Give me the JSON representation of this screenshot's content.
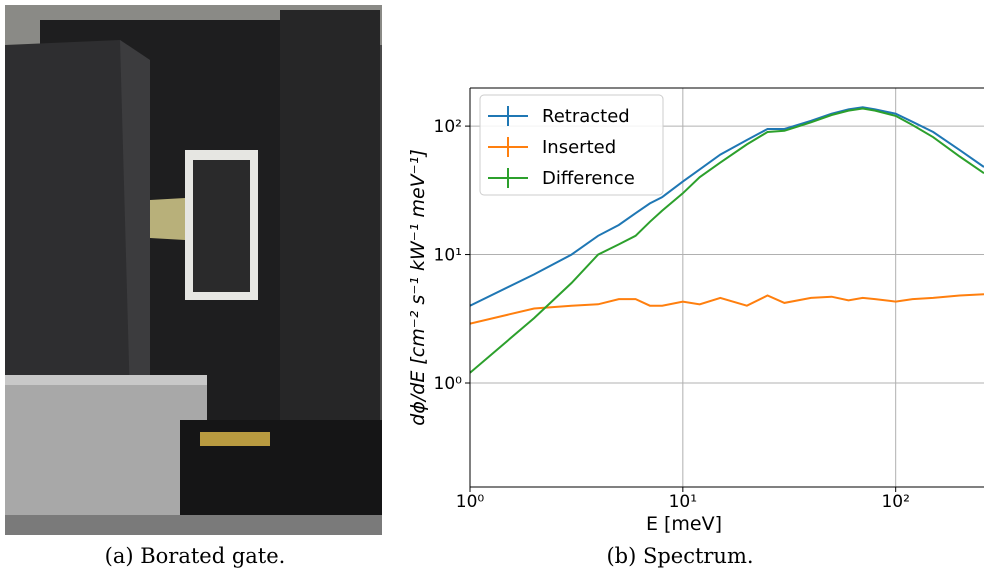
{
  "chart_data": {
    "type": "line",
    "xlabel": "E [meV]",
    "ylabel": "dϕ/dE [cm⁻² s⁻¹ kW⁻¹ meV⁻¹]",
    "x": [
      1,
      2,
      3,
      4,
      5,
      6,
      7,
      8,
      10,
      12,
      15,
      20,
      25,
      30,
      40,
      50,
      60,
      70,
      80,
      100,
      120,
      150,
      200,
      260
    ],
    "series": [
      {
        "name": "Retracted",
        "color": "#1f77b4",
        "values": [
          4.0,
          7.0,
          10,
          14,
          17,
          21,
          25,
          28,
          37,
          46,
          60,
          78,
          95,
          95,
          110,
          125,
          135,
          140,
          135,
          125,
          108,
          90,
          65,
          48
        ]
      },
      {
        "name": "Inserted",
        "color": "#ff7f0e",
        "values": [
          2.9,
          3.8,
          4.0,
          4.1,
          4.5,
          4.5,
          4.0,
          4.0,
          4.3,
          4.1,
          4.6,
          4.0,
          4.8,
          4.2,
          4.6,
          4.7,
          4.4,
          4.6,
          4.5,
          4.3,
          4.5,
          4.6,
          4.8,
          4.9
        ]
      },
      {
        "name": "Difference",
        "color": "#2ca02c",
        "values": [
          1.2,
          3.2,
          6,
          10,
          12,
          14,
          18,
          22,
          30,
          40,
          52,
          72,
          90,
          92,
          107,
          122,
          132,
          137,
          132,
          120,
          102,
          82,
          58,
          43
        ]
      }
    ],
    "xscale": "log",
    "yscale": "log",
    "xlim": [
      1,
      260
    ],
    "ylim": [
      0.155,
      198
    ],
    "xticks": [
      {
        "value": 1,
        "label": "10⁰"
      },
      {
        "value": 10,
        "label": "10¹"
      },
      {
        "value": 100,
        "label": "10²"
      }
    ],
    "yticks": [
      {
        "value": 1,
        "label": "10⁰"
      },
      {
        "value": 10,
        "label": "10¹"
      },
      {
        "value": 100,
        "label": "10²"
      }
    ],
    "grid": true,
    "legend": "upper left"
  },
  "captions": [
    "(a) Borated gate.",
    "(b) Spectrum."
  ]
}
